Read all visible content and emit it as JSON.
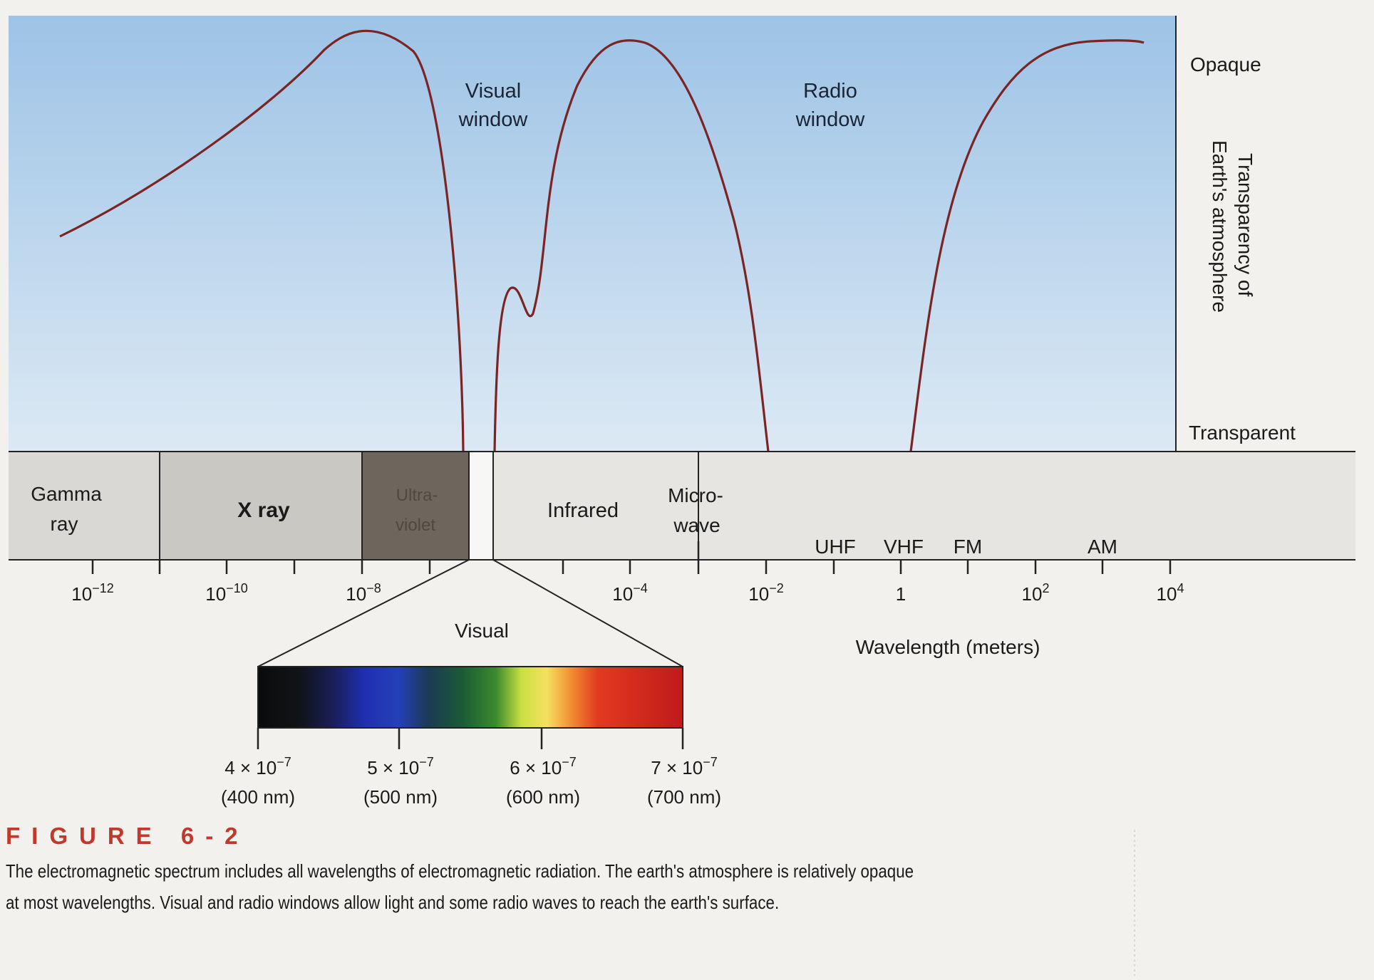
{
  "transparency_axis": {
    "label_line1": "Transparency of",
    "label_line2": "Earth's atmosphere",
    "top_label": "Opaque",
    "bottom_label": "Transparent"
  },
  "windows": {
    "visual_line1": "Visual",
    "visual_line2": "window",
    "radio_line1": "Radio",
    "radio_line2": "window"
  },
  "bands": {
    "gamma_line1": "Gamma",
    "gamma_line2": "ray",
    "xray": "X ray",
    "uv_line1": "Ultra-",
    "uv_line2": "violet",
    "infrared": "Infrared",
    "micro_line1": "Micro-",
    "micro_line2": "wave",
    "uhf": "UHF",
    "vhf": "VHF",
    "fm": "FM",
    "am": "AM"
  },
  "wavelength_axis": {
    "title": "Wavelength (meters)",
    "ticks": [
      {
        "base": "10",
        "exp": "−12"
      },
      {
        "base": "10",
        "exp": "−10"
      },
      {
        "base": "10",
        "exp": "−8"
      },
      {
        "base": "10",
        "exp": "−4"
      },
      {
        "base": "10",
        "exp": "−2"
      },
      {
        "base": "1",
        "exp": ""
      },
      {
        "base": "10",
        "exp": "2"
      },
      {
        "base": "10",
        "exp": "4"
      }
    ]
  },
  "visual_spectrum": {
    "title": "Visual",
    "ticks": [
      {
        "line1_base": "4 × 10",
        "line1_exp": "−7",
        "line2": "(400 nm)"
      },
      {
        "line1_base": "5 × 10",
        "line1_exp": "−7",
        "line2": "(500 nm)"
      },
      {
        "line1_base": "6 × 10",
        "line1_exp": "−7",
        "line2": "(600 nm)"
      },
      {
        "line1_base": "7 × 10",
        "line1_exp": "−7",
        "line2": "(700 nm)"
      }
    ]
  },
  "caption": {
    "label": "FIGURE 6-2",
    "text": "The electromagnetic spectrum includes all wavelengths of electromagnetic radiation. The earth's atmosphere is relatively opaque at most wavelengths. Visual and radio windows allow light and some radio waves to reach the earth's surface."
  },
  "colors": {
    "sky_top": "#9fc5e8",
    "sky_bottom": "#dbe9f5",
    "curve": "#7a2424",
    "band_gray": "#c9c8c4",
    "band_uv": "#6e665c",
    "band_light": "#e6e5e2",
    "caption_red": "#c0392b"
  }
}
